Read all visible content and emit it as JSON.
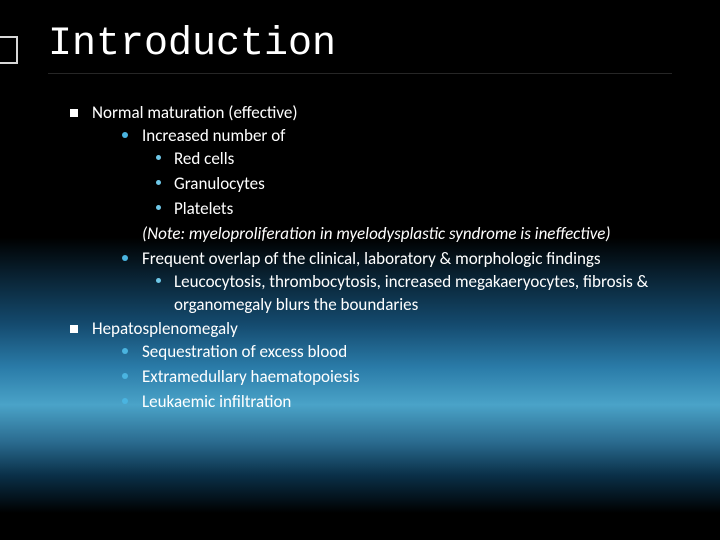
{
  "title": "Introduction",
  "colors": {
    "text": "#ffffff",
    "title": "#ffffff",
    "bullet_l1": "#ffffff",
    "bullet_l2": "#4ab4e0",
    "bullet_l3": "#6fc8e8",
    "edge_mark": "#d8d8d8",
    "gradient_stops": [
      "#000000",
      "#000000",
      "#0a2638",
      "#144a6e",
      "#2a7ba8",
      "#4aa3c8",
      "#2a6a8e",
      "#0a3048",
      "#000000",
      "#000000"
    ]
  },
  "typography": {
    "title_font": "Consolas",
    "title_size_pt": 30,
    "body_font": "Calibri",
    "body_size_pt": 13
  },
  "items": [
    {
      "text": "Normal maturation (effective)",
      "children": [
        {
          "type": "dot",
          "text": "Increased number of",
          "children": [
            {
              "text": "Red cells"
            },
            {
              "text": "Granulocytes"
            },
            {
              "text": "Platelets"
            }
          ]
        },
        {
          "type": "note",
          "text": "(Note: myeloproliferation in myelodysplastic syndrome is ineffective)"
        },
        {
          "type": "dot",
          "text": "Frequent overlap of the clinical, laboratory & morphologic findings",
          "children": [
            {
              "text": "Leucocytosis, thrombocytosis, increased megakaeryocytes, fibrosis & organomegaly blurs the boundaries"
            }
          ]
        }
      ]
    },
    {
      "text": "Hepatosplenomegaly",
      "children": [
        {
          "type": "dot",
          "text": "Sequestration of excess blood"
        },
        {
          "type": "dot",
          "text": "Extramedullary haematopoiesis"
        },
        {
          "type": "dot",
          "text": "Leukaemic infiltration"
        }
      ]
    }
  ]
}
